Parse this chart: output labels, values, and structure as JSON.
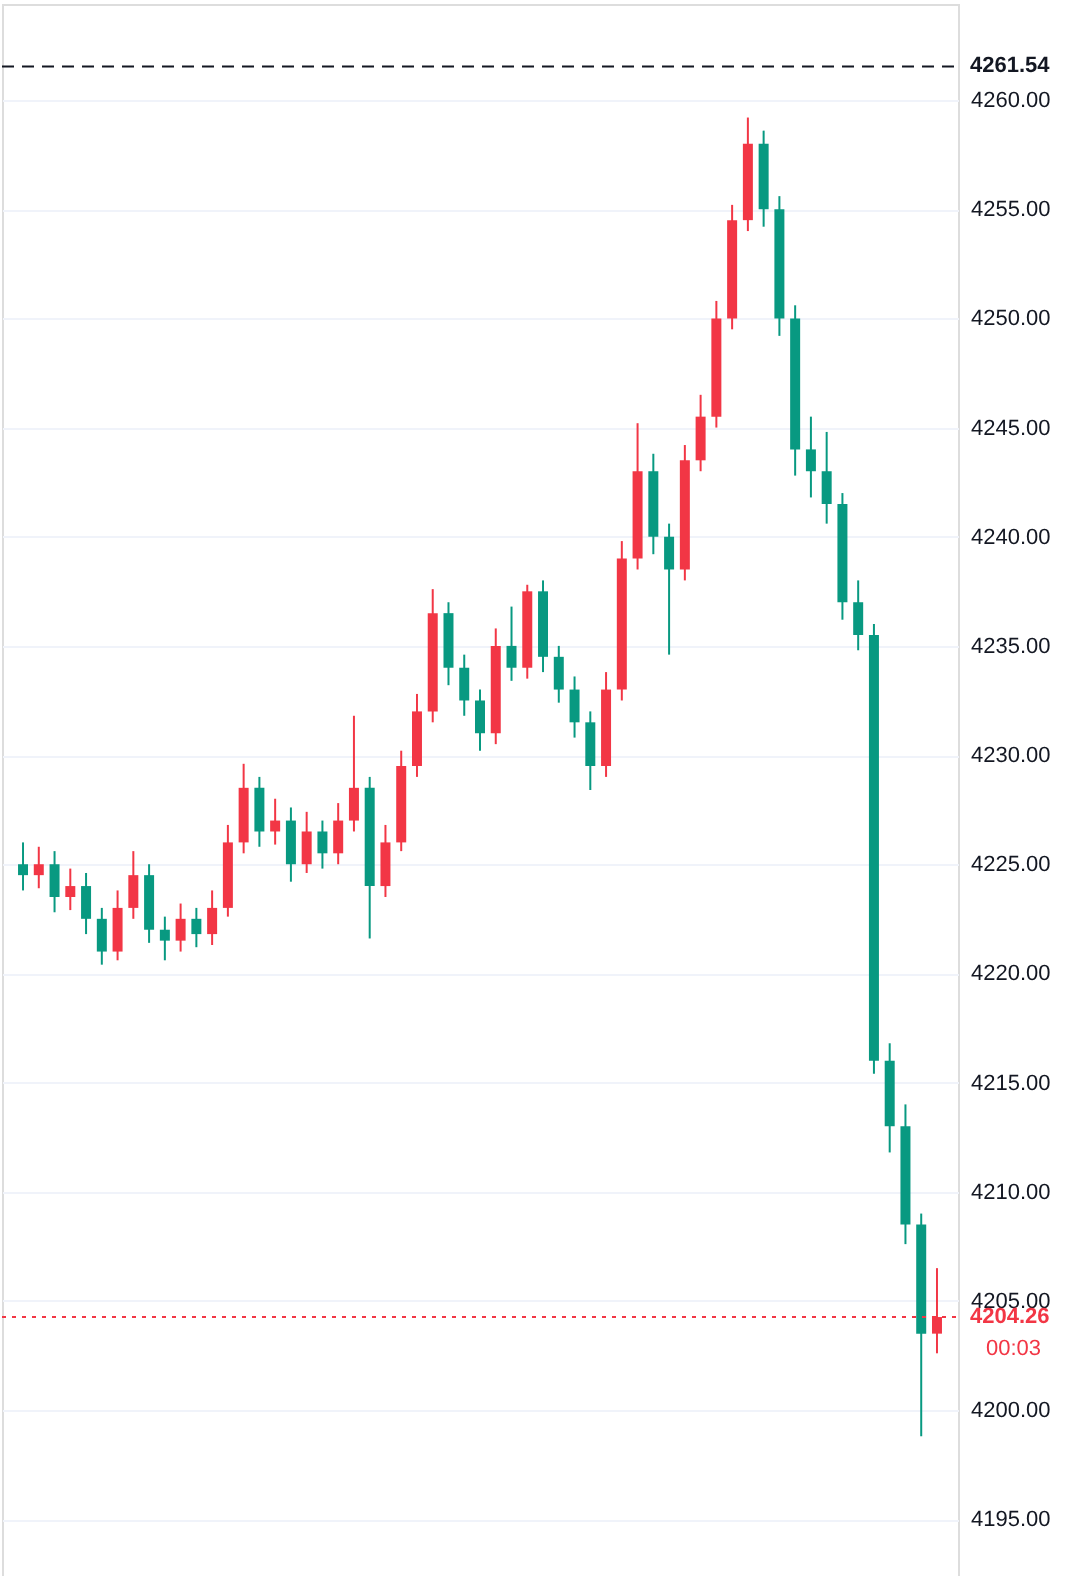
{
  "chart_data": {
    "type": "candlestick",
    "categories": [
      null,
      null,
      null,
      null,
      null,
      null,
      null,
      null,
      null,
      null,
      null,
      null,
      null,
      null,
      null,
      null,
      null,
      null,
      null,
      null,
      null,
      null,
      null,
      null,
      null,
      null,
      null,
      null,
      null,
      null,
      null,
      null,
      null,
      null,
      null,
      null,
      null,
      null,
      null,
      null,
      null,
      null,
      null,
      null,
      null,
      null,
      null,
      null,
      null,
      null,
      null,
      null,
      null,
      null,
      null,
      null,
      null,
      null,
      null
    ],
    "ohlc": [
      [
        4225,
        4226,
        4223.8,
        4224.5
      ],
      [
        4224.5,
        4225.8,
        4223.9,
        4225.0
      ],
      [
        4225.0,
        4225.6,
        4222.8,
        4223.5
      ],
      [
        4223.5,
        4224.8,
        4222.9,
        4224.0
      ],
      [
        4224.0,
        4224.6,
        4221.8,
        4222.5
      ],
      [
        4222.5,
        4223.0,
        4220.4,
        4221.0
      ],
      [
        4221.0,
        4223.8,
        4220.6,
        4223.0
      ],
      [
        4223.0,
        4225.6,
        4222.5,
        4224.5
      ],
      [
        4224.5,
        4225.0,
        4221.4,
        4222.0
      ],
      [
        4222.0,
        4222.6,
        4220.6,
        4221.5
      ],
      [
        4221.5,
        4223.2,
        4221.0,
        4222.5
      ],
      [
        4222.5,
        4223.0,
        4221.2,
        4221.8
      ],
      [
        4221.8,
        4223.8,
        4221.3,
        4223.0
      ],
      [
        4223.0,
        4226.8,
        4222.6,
        4226.0
      ],
      [
        4226.0,
        4229.6,
        4225.5,
        4228.5
      ],
      [
        4228.5,
        4229.0,
        4225.8,
        4226.5
      ],
      [
        4226.5,
        4228.0,
        4225.9,
        4227.0
      ],
      [
        4227.0,
        4227.6,
        4224.2,
        4225.0
      ],
      [
        4225.0,
        4227.4,
        4224.6,
        4226.5
      ],
      [
        4226.5,
        4227.0,
        4224.8,
        4225.5
      ],
      [
        4225.5,
        4227.8,
        4225.0,
        4227.0
      ],
      [
        4227.0,
        4231.8,
        4226.5,
        4228.5
      ],
      [
        4228.5,
        4229.0,
        4221.6,
        4224.0
      ],
      [
        4224.0,
        4226.8,
        4223.5,
        4226.0
      ],
      [
        4226.0,
        4230.2,
        4225.6,
        4229.5
      ],
      [
        4229.5,
        4232.8,
        4229.0,
        4232.0
      ],
      [
        4232.0,
        4237.6,
        4231.5,
        4236.5
      ],
      [
        4236.5,
        4237.0,
        4233.2,
        4234.0
      ],
      [
        4234.0,
        4234.6,
        4231.8,
        4232.5
      ],
      [
        4232.5,
        4233.0,
        4230.2,
        4231.0
      ],
      [
        4231.0,
        4235.8,
        4230.5,
        4235.0
      ],
      [
        4235.0,
        4236.8,
        4233.4,
        4234.0
      ],
      [
        4234.0,
        4237.8,
        4233.5,
        4237.5
      ],
      [
        4237.5,
        4238.0,
        4233.8,
        4234.5
      ],
      [
        4234.5,
        4235.0,
        4232.4,
        4233.0
      ],
      [
        4233.0,
        4233.6,
        4230.8,
        4231.5
      ],
      [
        4231.5,
        4232.0,
        4228.4,
        4229.5
      ],
      [
        4229.5,
        4233.8,
        4229.0,
        4233.0
      ],
      [
        4233.0,
        4239.8,
        4232.5,
        4239.0
      ],
      [
        4239.0,
        4245.2,
        4238.5,
        4243.0
      ],
      [
        4243.0,
        4243.8,
        4239.2,
        4240.0
      ],
      [
        4240.0,
        4240.6,
        4234.6,
        4238.5
      ],
      [
        4238.5,
        4244.2,
        4238.0,
        4243.5
      ],
      [
        4243.5,
        4246.5,
        4243.0,
        4245.5
      ],
      [
        4245.5,
        4250.8,
        4245.0,
        4250.0
      ],
      [
        4250.0,
        4255.2,
        4249.5,
        4254.5
      ],
      [
        4254.5,
        4259.2,
        4254.0,
        4258.0
      ],
      [
        4258.0,
        4258.6,
        4254.2,
        4255.0
      ],
      [
        4255.0,
        4255.6,
        4249.2,
        4250.0
      ],
      [
        4250.0,
        4250.6,
        4242.8,
        4244.0
      ],
      [
        4244.0,
        4245.5,
        4241.8,
        4243.0
      ],
      [
        4243.0,
        4244.8,
        4240.6,
        4241.5
      ],
      [
        4241.5,
        4242.0,
        4236.2,
        4237.0
      ],
      [
        4237.0,
        4238.0,
        4234.8,
        4235.5
      ],
      [
        4235.5,
        4236.0,
        4215.4,
        4216.0
      ],
      [
        4216.0,
        4216.8,
        4211.8,
        4213.0
      ],
      [
        4213.0,
        4214.0,
        4207.6,
        4208.5
      ],
      [
        4208.5,
        4209.0,
        4198.8,
        4203.5
      ],
      [
        4203.5,
        4206.5,
        4202.6,
        4204.26
      ]
    ],
    "colors": [
      "#089981",
      "#f23645",
      "#089981",
      "#f23645",
      "#089981",
      "#089981",
      "#f23645",
      "#f23645",
      "#089981",
      "#089981",
      "#f23645",
      "#089981",
      "#f23645",
      "#f23645",
      "#f23645",
      "#089981",
      "#f23645",
      "#089981",
      "#f23645",
      "#089981",
      "#f23645",
      "#f23645",
      "#089981",
      "#f23645",
      "#f23645",
      "#f23645",
      "#f23645",
      "#089981",
      "#089981",
      "#089981",
      "#f23645",
      "#089981",
      "#f23645",
      "#089981",
      "#089981",
      "#089981",
      "#089981",
      "#f23645",
      "#f23645",
      "#f23645",
      "#089981",
      "#089981",
      "#f23645",
      "#f23645",
      "#f23645",
      "#f23645",
      "#f23645",
      "#089981",
      "#089981",
      "#089981",
      "#089981",
      "#089981",
      "#089981",
      "#089981",
      "#089981",
      "#089981",
      "#089981",
      "#089981",
      "#f23645"
    ],
    "ylim": [
      4192.4,
      4264.4
    ],
    "yticks": [
      {
        "value": 4195,
        "label": "4195.00"
      },
      {
        "value": 4200,
        "label": "4200.00"
      },
      {
        "value": 4205,
        "label": "4205.00"
      },
      {
        "value": 4210,
        "label": "4210.00"
      },
      {
        "value": 4215,
        "label": "4215.00"
      },
      {
        "value": 4220,
        "label": "4220.00"
      },
      {
        "value": 4225,
        "label": "4225.00"
      },
      {
        "value": 4230,
        "label": "4230.00"
      },
      {
        "value": 4235,
        "label": "4235.00"
      },
      {
        "value": 4240,
        "label": "4240.00"
      },
      {
        "value": 4245,
        "label": "4245.00"
      },
      {
        "value": 4250,
        "label": "4250.00"
      },
      {
        "value": 4255,
        "label": "4255.00"
      },
      {
        "value": 4260,
        "label": "4260.00"
      }
    ],
    "grid": "y",
    "ref_lines": [
      {
        "axis": "y",
        "value": 4261.54,
        "label": "4261.54",
        "color": "#131722",
        "line_style": "dashed"
      },
      {
        "axis": "y",
        "value": 4204.26,
        "label": "4204.26",
        "color": "#f23645",
        "line_style": "dotted"
      }
    ],
    "annotations": [
      "00:03"
    ]
  }
}
